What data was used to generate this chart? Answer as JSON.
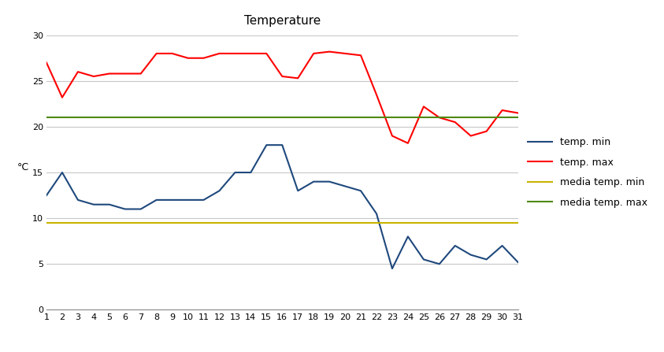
{
  "title": "Temperature",
  "ylabel": "°C",
  "days": [
    1,
    2,
    3,
    4,
    5,
    6,
    7,
    8,
    9,
    10,
    11,
    12,
    13,
    14,
    15,
    16,
    17,
    18,
    19,
    20,
    21,
    22,
    23,
    24,
    25,
    26,
    27,
    28,
    29,
    30,
    31
  ],
  "temp_min": [
    12.5,
    15,
    12,
    11.5,
    11.5,
    11,
    11,
    12,
    12,
    12,
    12,
    13,
    15,
    15,
    18,
    18,
    13,
    14,
    14,
    13.5,
    13,
    10.5,
    4.5,
    8,
    5.5,
    5,
    7,
    6,
    5.5,
    7,
    5.2
  ],
  "temp_max": [
    27,
    23.2,
    26,
    25.5,
    25.8,
    25.8,
    25.8,
    28,
    28,
    27.5,
    27.5,
    28,
    28,
    28,
    28,
    25.5,
    25.3,
    28,
    28.2,
    28,
    27.8,
    23.5,
    19,
    18.2,
    22.2,
    21,
    20.5,
    19,
    19.5,
    21.8,
    21.5
  ],
  "media_temp_min": 9.5,
  "media_temp_max": 21.0,
  "color_min": "#1f497d",
  "color_max": "#ff0000",
  "color_media_min": "#c8b400",
  "color_media_max": "#4f8a10",
  "xlim": [
    1,
    31
  ],
  "ylim": [
    0,
    30
  ],
  "yticks": [
    0,
    5,
    10,
    15,
    20,
    25,
    30
  ],
  "legend_labels": [
    "temp. min",
    "temp. max",
    "media temp. min",
    "media temp. max"
  ],
  "background_color": "#ffffff",
  "grid_color": "#c8c8c8"
}
